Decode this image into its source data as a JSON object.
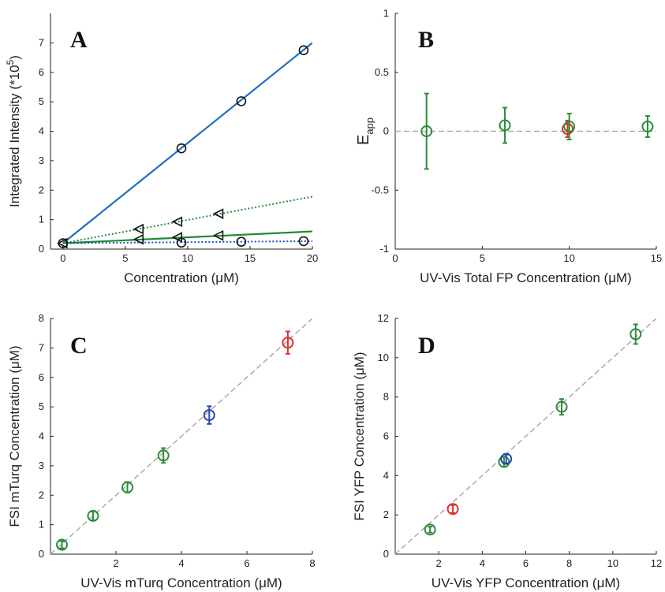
{
  "chart_data": [
    {
      "panel": "A",
      "type": "scatter",
      "xlabel": "Concentration (μM)",
      "ylabel": "Integrated Intensity (*10^5)",
      "ylabel_main": "Integrated Intensity (*10",
      "ylabel_exp": "5",
      "ylabel_close": ")",
      "xlim": [
        -1,
        20
      ],
      "ylim": [
        0,
        8
      ],
      "xticks": [
        0,
        5,
        10,
        15,
        20
      ],
      "yticks": [
        0,
        1,
        2,
        3,
        4,
        5,
        6,
        7
      ],
      "series": [
        {
          "marker": "circle",
          "line": "solid",
          "color": "#1f6fbf",
          "fit": [
            [
              0,
              0.2
            ],
            [
              20,
              7.0
            ]
          ],
          "points": [
            [
              0,
              0.2
            ],
            [
              9.5,
              3.42
            ],
            [
              14.3,
              5.02
            ],
            [
              19.3,
              6.75
            ]
          ]
        },
        {
          "marker": "triangle-left",
          "line": "dotted",
          "color": "#2e8b3a",
          "fit": [
            [
              0,
              0.2
            ],
            [
              20,
              1.78
            ]
          ],
          "points": [
            [
              0,
              0.2
            ],
            [
              6.1,
              0.68
            ],
            [
              9.2,
              0.93
            ],
            [
              12.5,
              1.2
            ]
          ]
        },
        {
          "marker": "triangle-left",
          "line": "solid",
          "color": "#1f8a2e",
          "fit": [
            [
              0,
              0.2
            ],
            [
              20,
              0.6
            ]
          ],
          "points": [
            [
              6.1,
              0.33
            ],
            [
              9.2,
              0.4
            ],
            [
              12.5,
              0.46
            ]
          ]
        },
        {
          "marker": "circle",
          "line": "dotted",
          "color": "#1f4fbf",
          "fit": [
            [
              0,
              0.2
            ],
            [
              20,
              0.27
            ]
          ],
          "points": [
            [
              9.5,
              0.22
            ],
            [
              14.3,
              0.25
            ],
            [
              19.3,
              0.27
            ]
          ]
        }
      ]
    },
    {
      "panel": "B",
      "type": "scatter",
      "xlabel": "UV-Vis Total FP Concentration (μM)",
      "ylabel": "E_app",
      "ylabel_main": "E",
      "ylabel_sub": "app",
      "xlim": [
        0,
        15
      ],
      "ylim": [
        -1,
        1
      ],
      "xticks": [
        0,
        5,
        10,
        15
      ],
      "yticks": [
        -1,
        -0.5,
        0,
        0.5,
        1
      ],
      "reference_line": [
        [
          0,
          0
        ],
        [
          15,
          0
        ]
      ],
      "points": [
        {
          "x": 1.8,
          "y": 0.0,
          "err": 0.32,
          "color": "#2e8b3a"
        },
        {
          "x": 6.3,
          "y": 0.05,
          "err": 0.15,
          "color": "#2e8b3a"
        },
        {
          "x": 9.9,
          "y": 0.02,
          "err": 0.07,
          "color": "#e0302a"
        },
        {
          "x": 10.0,
          "y": 0.04,
          "err": 0.11,
          "color": "#2e8b3a"
        },
        {
          "x": 14.5,
          "y": 0.04,
          "err": 0.09,
          "color": "#2e8b3a"
        }
      ]
    },
    {
      "panel": "C",
      "type": "scatter",
      "xlabel": "UV-Vis mTurq Concentration (μM)",
      "ylabel": "FSI mTurq Concentration (μM)",
      "xlim": [
        0,
        8
      ],
      "ylim": [
        0,
        8
      ],
      "xticks": [
        2,
        4,
        6,
        8
      ],
      "yticks": [
        0,
        1,
        2,
        3,
        4,
        5,
        6,
        7,
        8
      ],
      "reference_line": [
        [
          0,
          0
        ],
        [
          8,
          8
        ]
      ],
      "points": [
        {
          "x": 0.35,
          "y": 0.32,
          "err": 0.12,
          "color": "#2e8b3a"
        },
        {
          "x": 1.3,
          "y": 1.3,
          "err": 0.15,
          "color": "#2e8b3a"
        },
        {
          "x": 2.35,
          "y": 2.27,
          "err": 0.18,
          "color": "#2e8b3a"
        },
        {
          "x": 3.45,
          "y": 3.35,
          "err": 0.25,
          "color": "#2e8b3a"
        },
        {
          "x": 4.85,
          "y": 4.72,
          "err": 0.3,
          "color": "#2846b4"
        },
        {
          "x": 7.25,
          "y": 7.18,
          "err": 0.38,
          "color": "#e0302a"
        }
      ]
    },
    {
      "panel": "D",
      "type": "scatter",
      "xlabel": "UV-Vis YFP Concentration (μM)",
      "ylabel": "FSI YFP Concentration (μM)",
      "xlim": [
        0,
        12
      ],
      "ylim": [
        0,
        12
      ],
      "xticks": [
        2,
        4,
        6,
        8,
        10,
        12
      ],
      "yticks": [
        0,
        2,
        4,
        6,
        8,
        10,
        12
      ],
      "reference_line": [
        [
          0,
          0
        ],
        [
          12,
          12
        ]
      ],
      "points": [
        {
          "x": 1.6,
          "y": 1.25,
          "err": 0.15,
          "color": "#2e8b3a"
        },
        {
          "x": 2.65,
          "y": 2.3,
          "err": 0.2,
          "color": "#e0302a"
        },
        {
          "x": 5.0,
          "y": 4.7,
          "err": 0.25,
          "color": "#2e8b3a"
        },
        {
          "x": 5.1,
          "y": 4.85,
          "err": 0.22,
          "color": "#2846b4"
        },
        {
          "x": 7.65,
          "y": 7.5,
          "err": 0.4,
          "color": "#2e8b3a"
        },
        {
          "x": 11.05,
          "y": 11.2,
          "err": 0.5,
          "color": "#2e8b3a"
        }
      ]
    }
  ]
}
